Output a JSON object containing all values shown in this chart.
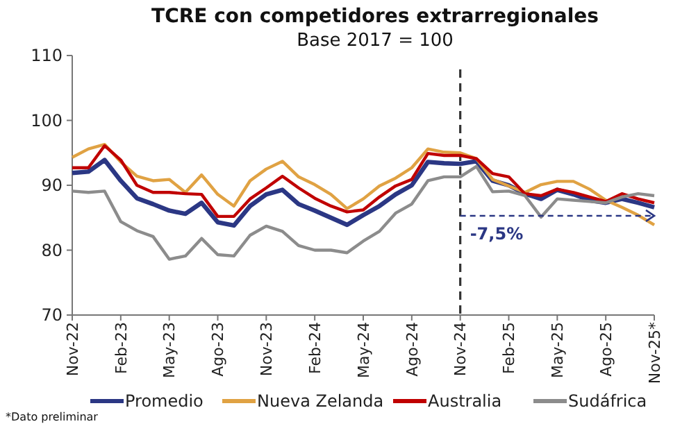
{
  "chart_data": {
    "type": "line",
    "title": "TCRE con competidores extrarregionales",
    "subtitle": "Base 2017 = 100",
    "categories": [
      "Nov-22",
      null,
      null,
      "Feb-23",
      null,
      null,
      "May-23",
      null,
      null,
      "Ago-23",
      null,
      null,
      "Nov-23",
      null,
      null,
      "Feb-24",
      null,
      null,
      "May-24",
      null,
      null,
      "Ago-24",
      null,
      null,
      "Nov-24",
      null,
      null,
      "Feb-25",
      null,
      null,
      "May-25",
      null,
      null,
      "Ago-25",
      null,
      null,
      "Nov-25*"
    ],
    "series": [
      {
        "name": "Promedio",
        "color": "#2b3784",
        "values": [
          91.9,
          92.1,
          93.9,
          90.7,
          88,
          87.1,
          86.1,
          85.6,
          87.3,
          84.3,
          83.8,
          86.8,
          88.6,
          89.3,
          87.1,
          86.1,
          85,
          83.9,
          85.4,
          86.8,
          88.6,
          90,
          93.6,
          93.4,
          93.3,
          93.7,
          90.7,
          90,
          88.7,
          87.9,
          89.3,
          88.6,
          87.7,
          87.3,
          87.9,
          87.3,
          86.6
        ]
      },
      {
        "name": "Nueva Zelanda",
        "color": "#e0a243",
        "values": [
          94.3,
          95.6,
          96.3,
          93.6,
          91.4,
          90.7,
          90.9,
          88.9,
          91.6,
          88.6,
          86.8,
          90.7,
          92.5,
          93.7,
          91.3,
          90.1,
          88.6,
          86.4,
          87.9,
          89.9,
          91.1,
          92.7,
          95.6,
          95.1,
          95,
          94.1,
          90.9,
          89.9,
          88.9,
          90.1,
          90.6,
          90.6,
          89.4,
          87.7,
          86.6,
          85.4,
          83.9
        ]
      },
      {
        "name": "Australia",
        "color": "#c00000",
        "values": [
          92.7,
          92.7,
          96.1,
          93.9,
          90,
          88.9,
          88.9,
          88.7,
          88.6,
          85.2,
          85.2,
          87.9,
          89.6,
          91.4,
          89.6,
          88,
          86.8,
          85.9,
          86.2,
          88.2,
          89.9,
          90.9,
          94.9,
          94.6,
          94.6,
          94.1,
          91.8,
          91.3,
          88.7,
          88.4,
          89.4,
          88.9,
          88.2,
          87.5,
          88.7,
          87.9,
          87.3
        ]
      },
      {
        "name": "Sudáfrica",
        "color": "#8c8c8c",
        "values": [
          89.1,
          88.9,
          89.1,
          84.4,
          83,
          82.1,
          78.6,
          79.1,
          81.8,
          79.3,
          79.1,
          82.3,
          83.7,
          82.9,
          80.7,
          80,
          80,
          79.6,
          81.4,
          82.9,
          85.7,
          87.1,
          90.7,
          91.3,
          91.3,
          92.9,
          89,
          89.1,
          88.4,
          85.1,
          87.9,
          87.7,
          87.5,
          87.3,
          88.2,
          88.7,
          88.4
        ]
      }
    ],
    "ylim": [
      70,
      110
    ],
    "yticks": [
      70,
      80,
      90,
      100,
      110
    ],
    "ref_lines": [
      {
        "axis": "x",
        "value": "Nov-24",
        "line_style": "dashed",
        "color": "#333333"
      }
    ],
    "annotations": [
      {
        "text": "-7,5%",
        "x": "Nov-24",
        "y": 85.3
      },
      "*Dato preliminar"
    ],
    "legend": "bottom",
    "grid": false,
    "line_style": "solid"
  }
}
